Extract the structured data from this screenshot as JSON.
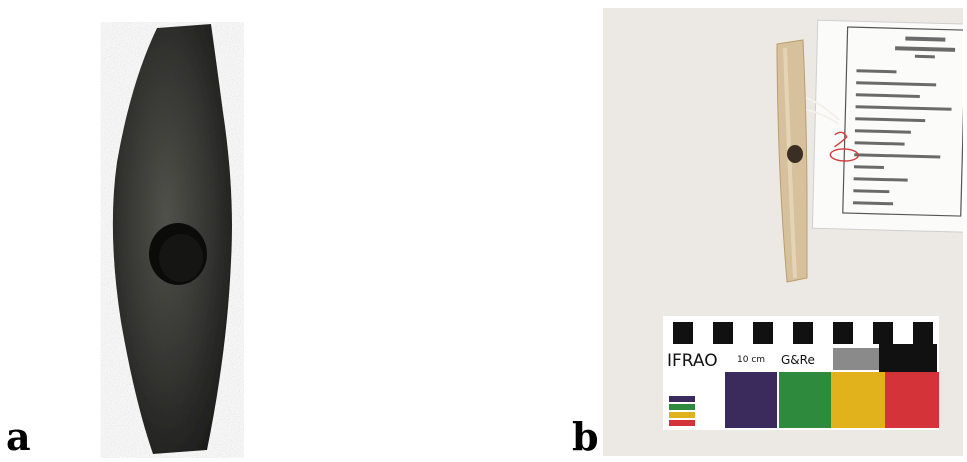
{
  "panels": {
    "a": {
      "label": "a"
    },
    "b": {
      "label": "b"
    }
  },
  "scale_bar": {
    "brand": "IFRAO",
    "size": "10 cm",
    "company": "G&Re"
  },
  "colors": {
    "stone": "#2f2f2d",
    "bone": "#d9c4a0",
    "background_b": "#ece9e4",
    "scale_purple": "#3b2a5c",
    "scale_green": "#2e8a3c",
    "scale_yellow": "#e1b21c",
    "scale_red": "#d4333a",
    "tag_ink_red": "#d43c3c"
  }
}
